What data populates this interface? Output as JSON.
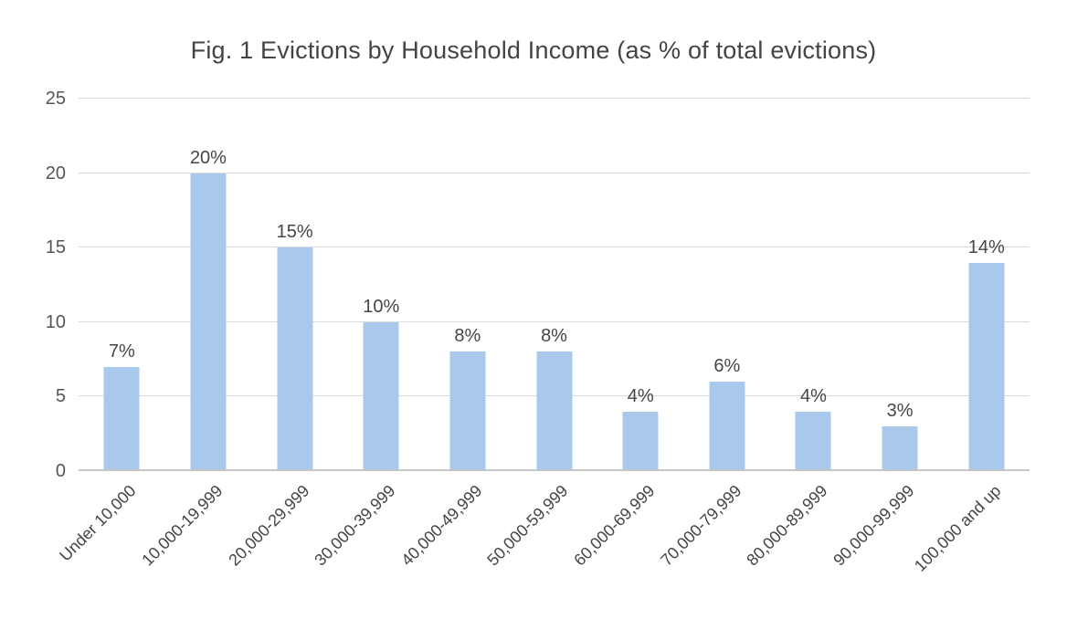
{
  "chart_data": {
    "type": "bar",
    "title": "Fig. 1 Evictions by Household Income (as % of total evictions)",
    "categories": [
      "Under 10,000",
      "10,000-19,999",
      "20,000-29,999",
      "30,000-39,999",
      "40,000-49,999",
      "50,000-59,999",
      "60,000-69,999",
      "70,000-79,999",
      "80,000-89,999",
      "90,000-99,999",
      "100,000 and up"
    ],
    "values": [
      7,
      20,
      15,
      10,
      8,
      8,
      4,
      6,
      4,
      3,
      14
    ],
    "value_labels": [
      "7%",
      "20%",
      "15%",
      "10%",
      "8%",
      "8%",
      "4%",
      "6%",
      "4%",
      "3%",
      "14%"
    ],
    "xlabel": "",
    "ylabel": "",
    "ylim": [
      0,
      25
    ],
    "yticks": [
      0,
      5,
      10,
      15,
      20,
      25
    ],
    "grid": "horizontal",
    "legend": "none",
    "bar_color": "#a8c8ec",
    "gridline_color": "#d9d9d9",
    "axis_line_color": "#c6c6c6",
    "text_color": "#454545"
  }
}
